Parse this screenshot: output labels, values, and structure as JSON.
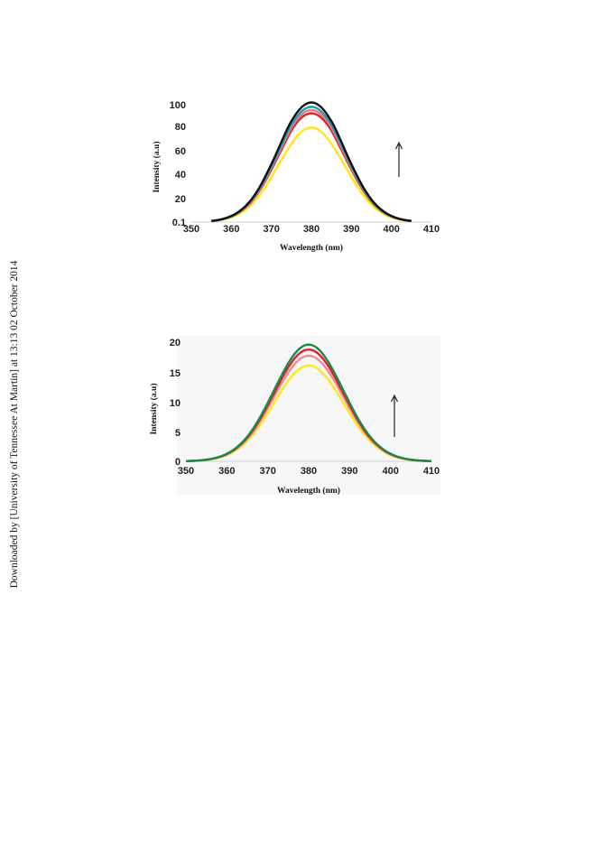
{
  "sidebar": {
    "download_note": "Downloaded by [University of Tennessee At Martin] at 13:13 02 October 2014"
  },
  "chart_data": [
    {
      "type": "line",
      "xlabel": "Wavelength (nm)",
      "ylabel": "Intensity (a.u)",
      "xlim": [
        350,
        410
      ],
      "x_ticks": [
        "350",
        "360",
        "370",
        "380",
        "390",
        "400",
        "410"
      ],
      "y_ticks": [
        "0.1",
        "20",
        "40",
        "60",
        "80",
        "100"
      ],
      "y_tick_values": [
        0.1,
        20,
        40,
        60,
        80,
        100
      ],
      "grid": false,
      "annotation": "upward arrow",
      "x_start": 355,
      "x_end": 405,
      "peak_x": 380,
      "series": [
        {
          "color": "#ffe81a",
          "peak": 79
        },
        {
          "color": "#e0202a",
          "peak": 92
        },
        {
          "color": "#e87a7a",
          "peak": 95
        },
        {
          "color": "#1a9fb8",
          "peak": 98
        },
        {
          "color": "#111111",
          "peak": 102
        }
      ]
    },
    {
      "type": "line",
      "xlabel": "Wavelength (nm)",
      "ylabel": "Intensity (a.u)",
      "xlim": [
        350,
        410
      ],
      "x_ticks": [
        "350",
        "360",
        "370",
        "380",
        "390",
        "400",
        "410"
      ],
      "y_ticks": [
        "0",
        "5",
        "10",
        "15",
        "20"
      ],
      "y_tick_values": [
        0,
        5,
        10,
        15,
        20
      ],
      "grid": false,
      "annotation": "upward arrow",
      "x_start": 350,
      "x_end": 410,
      "peak_x": 380,
      "series": [
        {
          "color": "#ffe81a",
          "peak": 16.2
        },
        {
          "color": "#f08a9a",
          "peak": 17.8
        },
        {
          "color": "#e0202a",
          "peak": 18.8
        },
        {
          "color": "#1a8a4a",
          "peak": 19.6
        }
      ]
    }
  ]
}
